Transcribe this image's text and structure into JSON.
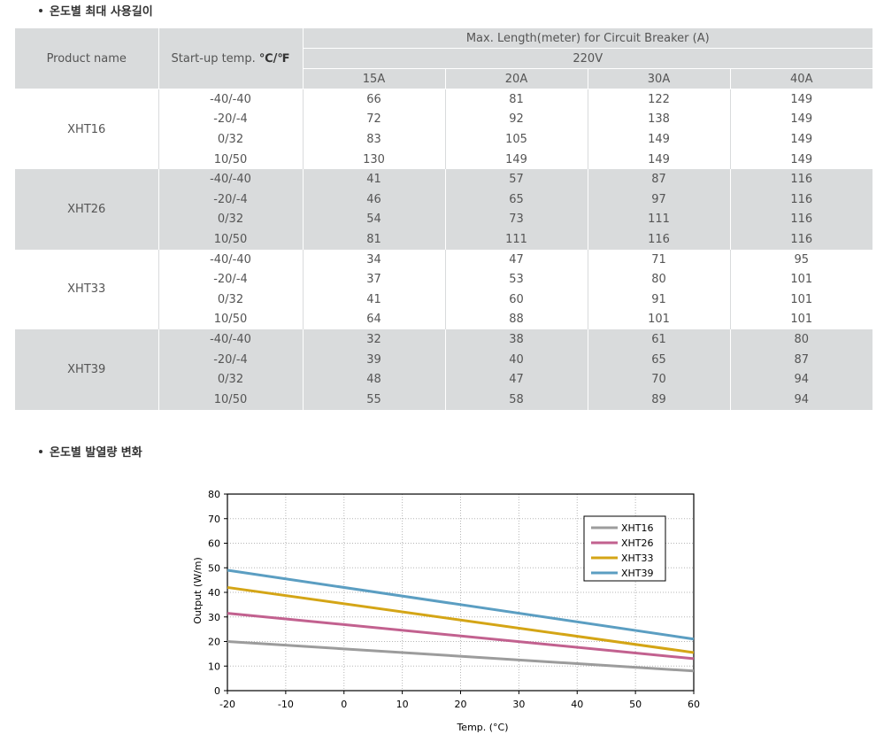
{
  "section1": {
    "title": "온도별 최대 사용길이"
  },
  "section2": {
    "title": "온도별 발열량 변화"
  },
  "table": {
    "col_product": "Product name",
    "col_temp_prefix": "Start-up temp. ",
    "col_temp_unit": "℃/℉",
    "group_header": "Max. Length(meter) for Circuit Breaker (A)",
    "voltage": "220V",
    "breakers": [
      "15A",
      "20A",
      "30A",
      "40A"
    ],
    "products": [
      {
        "name": "XHT16",
        "rows": [
          {
            "temp": "-40/-40",
            "values": [
              "66",
              "81",
              "122",
              "149"
            ]
          },
          {
            "temp": "-20/-4",
            "values": [
              "72",
              "92",
              "138",
              "149"
            ]
          },
          {
            "temp": "0/32",
            "values": [
              "83",
              "105",
              "149",
              "149"
            ]
          },
          {
            "temp": "10/50",
            "values": [
              "130",
              "149",
              "149",
              "149"
            ]
          }
        ]
      },
      {
        "name": "XHT26",
        "rows": [
          {
            "temp": "-40/-40",
            "values": [
              "41",
              "57",
              "87",
              "116"
            ]
          },
          {
            "temp": "-20/-4",
            "values": [
              "46",
              "65",
              "97",
              "116"
            ]
          },
          {
            "temp": "0/32",
            "values": [
              "54",
              "73",
              "111",
              "116"
            ]
          },
          {
            "temp": "10/50",
            "values": [
              "81",
              "111",
              "116",
              "116"
            ]
          }
        ]
      },
      {
        "name": "XHT33",
        "rows": [
          {
            "temp": "-40/-40",
            "values": [
              "34",
              "47",
              "71",
              "95"
            ]
          },
          {
            "temp": "-20/-4",
            "values": [
              "37",
              "53",
              "80",
              "101"
            ]
          },
          {
            "temp": "0/32",
            "values": [
              "41",
              "60",
              "91",
              "101"
            ]
          },
          {
            "temp": "10/50",
            "values": [
              "64",
              "88",
              "101",
              "101"
            ]
          }
        ]
      },
      {
        "name": "XHT39",
        "rows": [
          {
            "temp": "-40/-40",
            "values": [
              "32",
              "38",
              "61",
              "80"
            ]
          },
          {
            "temp": "-20/-4",
            "values": [
              "39",
              "40",
              "65",
              "87"
            ]
          },
          {
            "temp": "0/32",
            "values": [
              "48",
              "47",
              "70",
              "94"
            ]
          },
          {
            "temp": "10/50",
            "values": [
              "55",
              "58",
              "89",
              "94"
            ]
          }
        ]
      }
    ]
  },
  "chart_data": {
    "type": "line",
    "xlabel": "Temp. (°C)",
    "ylabel": "Output (W/m)",
    "xlim": [
      -20,
      60
    ],
    "ylim": [
      0,
      80
    ],
    "xticks": [
      -20,
      -10,
      0,
      10,
      20,
      30,
      40,
      50,
      60
    ],
    "yticks": [
      0,
      10,
      20,
      30,
      40,
      50,
      60,
      70,
      80
    ],
    "grid": true,
    "legend": "top-right",
    "series": [
      {
        "name": "XHT16",
        "color": "#9c9c9c",
        "x": [
          -20,
          60
        ],
        "y": [
          20,
          8
        ]
      },
      {
        "name": "XHT26",
        "color": "#c2618f",
        "x": [
          -20,
          60
        ],
        "y": [
          31.5,
          13
        ]
      },
      {
        "name": "XHT33",
        "color": "#d4a516",
        "x": [
          -20,
          60
        ],
        "y": [
          42,
          15.5
        ]
      },
      {
        "name": "XHT39",
        "color": "#5b9ec2",
        "x": [
          -20,
          60
        ],
        "y": [
          49,
          21
        ]
      }
    ]
  }
}
